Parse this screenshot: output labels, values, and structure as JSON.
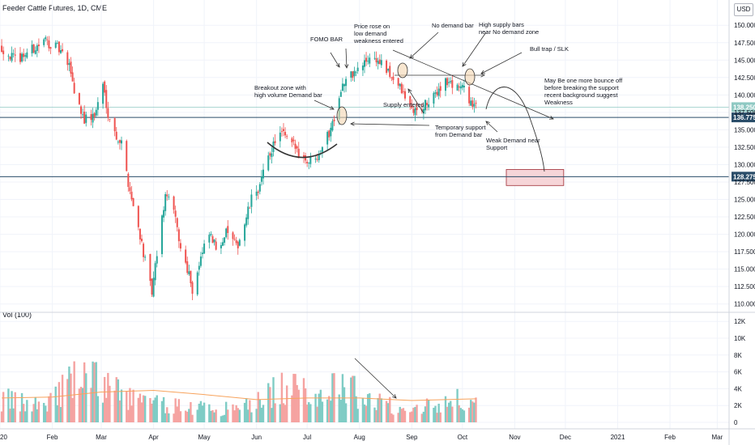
{
  "header": {
    "title": "Feeder Cattle Futures, 1D, CME",
    "currency_label": "USD",
    "volume_label": "Vol (100)"
  },
  "colors": {
    "up": "#26a69a",
    "down": "#ef5350",
    "up_volume": "#7fccc5",
    "down_volume": "#f5a3a1",
    "ma_line": "#f7a35c",
    "level_line": "#2a4d69",
    "badge_light": "#8fc9c3",
    "badge_dark": "#2a4d69",
    "box_fill": "#f6d5d8",
    "box_stroke": "#9e2a33"
  },
  "chart_data": {
    "type": "candlestick",
    "title": "Feeder Cattle Futures, 1D, CME",
    "price_axis": {
      "range": [
        109.5,
        152.0
      ],
      "ticks": [
        110.0,
        112.5,
        115.0,
        117.5,
        120.0,
        122.5,
        125.0,
        127.5,
        130.0,
        132.5,
        135.0,
        137.5,
        140.0,
        142.5,
        145.0,
        147.5,
        150.0
      ],
      "tick_labels": [
        "110.000",
        "112.500",
        "115.000",
        "117.500",
        "120.000",
        "122.500",
        "125.000",
        "127.500",
        "130.000",
        "132.500",
        "135.000",
        "137.500",
        "140.000",
        "142.500",
        "145.000",
        "147.500",
        "150.000"
      ]
    },
    "volume_axis": {
      "range": [
        0,
        12500
      ],
      "ticks": [
        0,
        2000,
        4000,
        6000,
        8000,
        10000,
        12000
      ],
      "tick_labels": [
        "0",
        "2K",
        "4K",
        "6K",
        "8K",
        "10K",
        "12K"
      ]
    },
    "time_axis": {
      "start": "2020-01-01",
      "end": "2021-03-08",
      "tick_dates": [
        "2020-01-01",
        "2020-02-01",
        "2020-03-01",
        "2020-04-01",
        "2020-05-01",
        "2020-06-01",
        "2020-07-01",
        "2020-08-01",
        "2020-09-01",
        "2020-10-01",
        "2020-11-01",
        "2020-12-01",
        "2021-01-01",
        "2021-02-01",
        "2021-03-01"
      ],
      "tick_labels": [
        "2020",
        "Feb",
        "Mar",
        "Apr",
        "May",
        "Jun",
        "Jul",
        "Aug",
        "Sep",
        "Oct",
        "Nov",
        "Dec",
        "2021",
        "Feb",
        "Mar"
      ]
    },
    "price_path": [
      [
        "2020-01-02",
        146.8
      ],
      [
        "2020-01-10",
        145.0
      ],
      [
        "2020-01-20",
        146.5
      ],
      [
        "2020-01-28",
        147.8
      ],
      [
        "2020-02-05",
        146.5
      ],
      [
        "2020-02-12",
        143.5
      ],
      [
        "2020-02-14",
        140.5
      ],
      [
        "2020-02-20",
        136.5
      ],
      [
        "2020-02-26",
        137.0
      ],
      [
        "2020-03-02",
        141.5
      ],
      [
        "2020-03-05",
        137.5
      ],
      [
        "2020-03-09",
        134.5
      ],
      [
        "2020-03-13",
        133.0
      ],
      [
        "2020-03-17",
        127.5
      ],
      [
        "2020-03-20",
        124.0
      ],
      [
        "2020-03-24",
        120.0
      ],
      [
        "2020-03-27",
        116.0
      ],
      [
        "2020-03-31",
        111.5
      ],
      [
        "2020-04-03",
        117.0
      ],
      [
        "2020-04-07",
        124.0
      ],
      [
        "2020-04-09",
        126.0
      ],
      [
        "2020-04-14",
        122.0
      ],
      [
        "2020-04-17",
        118.0
      ],
      [
        "2020-04-22",
        114.5
      ],
      [
        "2020-04-24",
        112.0
      ],
      [
        "2020-04-29",
        116.5
      ],
      [
        "2020-05-04",
        120.0
      ],
      [
        "2020-05-08",
        118.0
      ],
      [
        "2020-05-12",
        119.5
      ],
      [
        "2020-05-15",
        120.5
      ],
      [
        "2020-05-20",
        118.0
      ],
      [
        "2020-05-25",
        121.5
      ],
      [
        "2020-05-29",
        125.0
      ],
      [
        "2020-06-03",
        127.0
      ],
      [
        "2020-06-08",
        131.0
      ],
      [
        "2020-06-12",
        133.5
      ],
      [
        "2020-06-16",
        134.5
      ],
      [
        "2020-06-19",
        133.5
      ],
      [
        "2020-06-24",
        132.5
      ],
      [
        "2020-06-29",
        131.0
      ],
      [
        "2020-07-02",
        130.5
      ],
      [
        "2020-07-07",
        131.5
      ],
      [
        "2020-07-10",
        133.0
      ],
      [
        "2020-07-14",
        134.5
      ],
      [
        "2020-07-17",
        137.0
      ],
      [
        "2020-07-21",
        141.0
      ],
      [
        "2020-07-24",
        142.0
      ],
      [
        "2020-07-28",
        143.0
      ],
      [
        "2020-07-31",
        143.5
      ],
      [
        "2020-08-04",
        144.5
      ],
      [
        "2020-08-07",
        145.5
      ],
      [
        "2020-08-11",
        145.0
      ],
      [
        "2020-08-14",
        144.5
      ],
      [
        "2020-08-18",
        143.0
      ],
      [
        "2020-08-21",
        142.5
      ],
      [
        "2020-08-25",
        141.0
      ],
      [
        "2020-08-28",
        139.5
      ],
      [
        "2020-09-01",
        138.0
      ],
      [
        "2020-09-04",
        137.5
      ],
      [
        "2020-09-09",
        138.5
      ],
      [
        "2020-09-14",
        139.5
      ],
      [
        "2020-09-17",
        141.0
      ],
      [
        "2020-09-21",
        142.0
      ],
      [
        "2020-09-24",
        141.5
      ],
      [
        "2020-09-28",
        141.5
      ],
      [
        "2020-10-01",
        141.0
      ],
      [
        "2020-10-05",
        139.5
      ],
      [
        "2020-10-08",
        138.0
      ],
      [
        "2020-10-09",
        138.25
      ]
    ],
    "volume_path": [
      [
        "2020-01-02",
        2800
      ],
      [
        "2020-01-15",
        2200
      ],
      [
        "2020-01-30",
        2600
      ],
      [
        "2020-02-10",
        4500
      ],
      [
        "2020-02-20",
        5500
      ],
      [
        "2020-02-28",
        4800
      ],
      [
        "2020-03-10",
        3800
      ],
      [
        "2020-03-20",
        2800
      ],
      [
        "2020-04-01",
        2200
      ],
      [
        "2020-04-15",
        2000
      ],
      [
        "2020-05-01",
        1700
      ],
      [
        "2020-05-15",
        1600
      ],
      [
        "2020-06-01",
        2300
      ],
      [
        "2020-06-12",
        4000
      ],
      [
        "2020-06-25",
        3800
      ],
      [
        "2020-07-08",
        3500
      ],
      [
        "2020-07-18",
        4500
      ],
      [
        "2020-07-28",
        3800
      ],
      [
        "2020-08-10",
        2500
      ],
      [
        "2020-08-25",
        1800
      ],
      [
        "2020-09-10",
        2000
      ],
      [
        "2020-09-25",
        2800
      ],
      [
        "2020-10-09",
        2000
      ]
    ],
    "volume_average": [
      [
        "2020-01-02",
        2900
      ],
      [
        "2020-02-01",
        3000
      ],
      [
        "2020-03-01",
        3600
      ],
      [
        "2020-04-01",
        3800
      ],
      [
        "2020-05-01",
        3300
      ],
      [
        "2020-06-01",
        2700
      ],
      [
        "2020-07-01",
        2900
      ],
      [
        "2020-08-01",
        2900
      ],
      [
        "2020-09-01",
        2600
      ],
      [
        "2020-10-09",
        2800
      ]
    ],
    "horizontal_levels": [
      {
        "price": 138.25,
        "label": "138.250",
        "style": "light"
      },
      {
        "price": 136.775,
        "label": "136.775",
        "style": "dark"
      },
      {
        "price": 128.275,
        "label": "128.275",
        "style": "dark"
      }
    ],
    "target_box": {
      "start": "2020-10-27",
      "end": "2020-11-30",
      "price_top": 129.3,
      "price_bottom": 127.0
    },
    "annotations": {
      "fomo": "FOMO BAR",
      "price_rose_1": "Price rose on",
      "price_rose_2": "low demand",
      "price_rose_3": "weakness entered",
      "no_demand": "No demand bar",
      "high_supply_1": "High supply bars",
      "high_supply_2": "near No demand zone",
      "bull_trap": "Bull trap / SLK",
      "breakout_1": "Breakout zone with",
      "breakout_2": "high volume Demand bar",
      "supply_entered": "Supply entered",
      "temp_support_1": "Temporary support",
      "temp_support_2": "from Demand bar",
      "weak_demand_1": "Weak Demand near",
      "weak_demand_2": "Support",
      "bounce_1": "May Be one more bounce off",
      "bounce_2": "before breaking the support",
      "bounce_3": "recent background suggest",
      "bounce_4": "Weakness"
    }
  }
}
